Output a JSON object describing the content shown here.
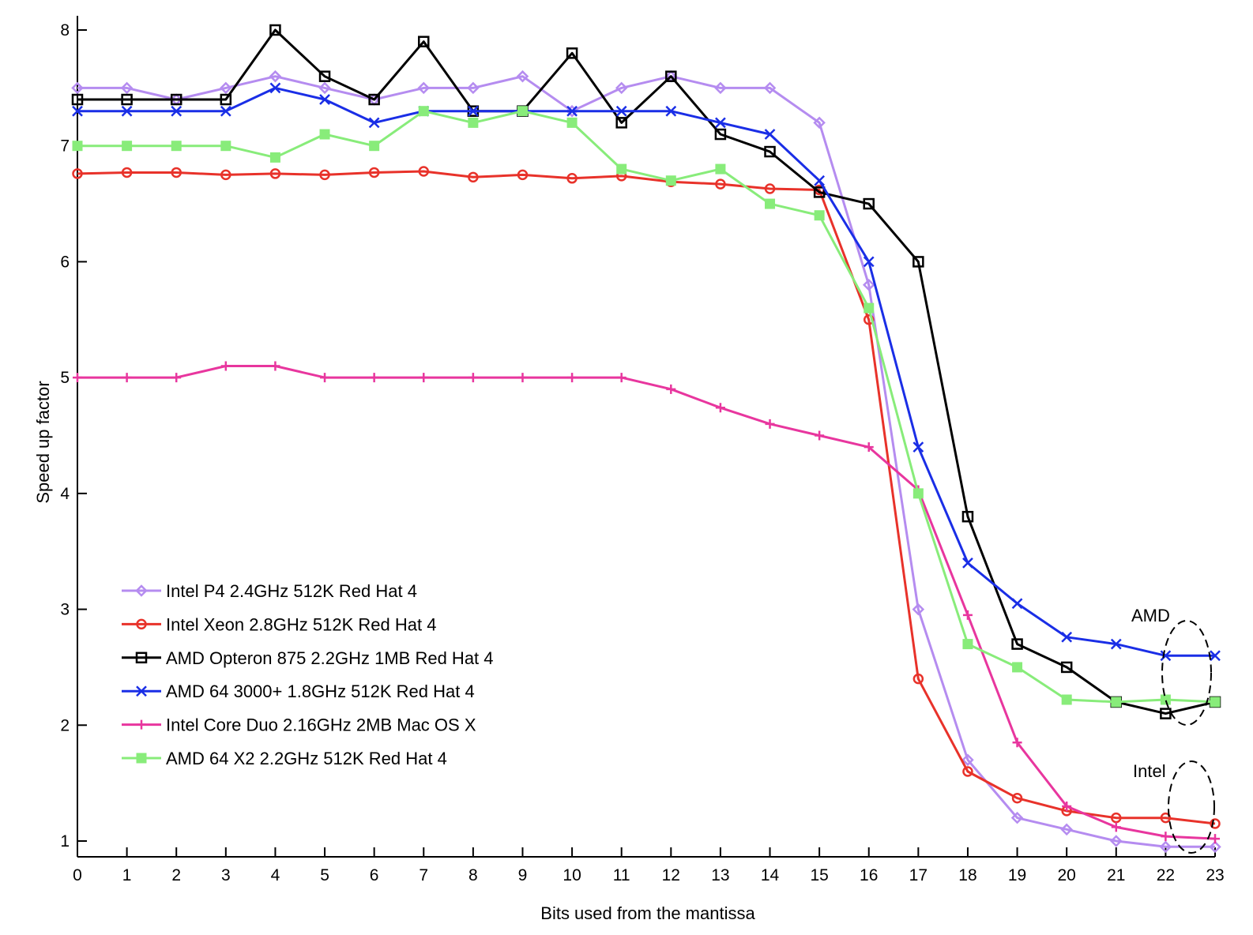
{
  "chart_data": {
    "type": "line",
    "xlabel": "Bits used from the mantissa",
    "ylabel": "Speed up factor",
    "xlim": [
      0,
      23
    ],
    "ylim": [
      0.9,
      8.05
    ],
    "x": [
      0,
      1,
      2,
      3,
      4,
      5,
      6,
      7,
      8,
      9,
      10,
      11,
      12,
      13,
      14,
      15,
      16,
      17,
      18,
      19,
      20,
      21,
      22,
      23
    ],
    "xticks": [
      "0",
      "1",
      "2",
      "3",
      "4",
      "5",
      "6",
      "7",
      "8",
      "9",
      "10",
      "11",
      "12",
      "13",
      "14",
      "15",
      "16",
      "17",
      "18",
      "19",
      "20",
      "21",
      "22",
      "23"
    ],
    "yticks": [
      1,
      2,
      3,
      4,
      5,
      6,
      7,
      8
    ],
    "ytick_labels": [
      "1",
      "2",
      "3",
      "4",
      "5",
      "6",
      "7",
      "8"
    ],
    "grid": false,
    "legend_position": "lower-left",
    "series": [
      {
        "name": "Intel P4 2.4GHz 512K Red Hat 4",
        "color": "#b58cf0",
        "marker": "diamond",
        "values": [
          7.5,
          7.5,
          7.4,
          7.5,
          7.6,
          7.5,
          7.4,
          7.5,
          7.5,
          7.6,
          7.3,
          7.5,
          7.6,
          7.5,
          7.5,
          7.2,
          5.8,
          3.0,
          1.7,
          1.2,
          1.1,
          1.0,
          0.95,
          0.95
        ]
      },
      {
        "name": "Intel Xeon 2.8GHz 512K Red Hat 4",
        "color": "#e8322a",
        "marker": "circle",
        "values": [
          6.76,
          6.77,
          6.77,
          6.75,
          6.76,
          6.75,
          6.77,
          6.78,
          6.73,
          6.75,
          6.72,
          6.74,
          6.69,
          6.67,
          6.63,
          6.62,
          5.5,
          2.4,
          1.6,
          1.37,
          1.26,
          1.2,
          1.2,
          1.15
        ]
      },
      {
        "name": "AMD Opteron 875 2.2GHz 1MB Red Hat 4",
        "color": "#000000",
        "marker": "square",
        "values": [
          7.4,
          7.4,
          7.4,
          7.4,
          8.0,
          7.6,
          7.4,
          7.9,
          7.3,
          7.3,
          7.8,
          7.2,
          7.6,
          7.1,
          6.95,
          6.6,
          6.5,
          6.0,
          3.8,
          2.7,
          2.5,
          2.2,
          2.1,
          2.2
        ]
      },
      {
        "name": "AMD 64 3000+ 1.8GHz 512K Red Hat  4",
        "color": "#1a2ee6",
        "marker": "x",
        "values": [
          7.3,
          7.3,
          7.3,
          7.3,
          7.5,
          7.4,
          7.2,
          7.3,
          7.3,
          7.3,
          7.3,
          7.3,
          7.3,
          7.2,
          7.1,
          6.7,
          6.0,
          4.4,
          3.4,
          3.05,
          2.76,
          2.7,
          2.6,
          2.6
        ]
      },
      {
        "name": "Intel Core Duo 2.16GHz 2MB Mac OS X",
        "color": "#e8369e",
        "marker": "plus",
        "values": [
          5.0,
          5.0,
          5.0,
          5.1,
          5.1,
          5.0,
          5.0,
          5.0,
          5.0,
          5.0,
          5.0,
          5.0,
          4.9,
          4.74,
          4.6,
          4.5,
          4.4,
          4.03,
          2.95,
          1.85,
          1.3,
          1.12,
          1.04,
          1.02
        ]
      },
      {
        "name": "AMD 64 X2 2.2GHz 512K Red Hat 4",
        "color": "#88ec7a",
        "marker": "filled-square",
        "values": [
          7.0,
          7.0,
          7.0,
          7.0,
          6.9,
          7.1,
          7.0,
          7.3,
          7.2,
          7.3,
          7.2,
          6.8,
          6.7,
          6.8,
          6.5,
          6.4,
          5.6,
          4.0,
          2.7,
          2.5,
          2.22,
          2.2,
          2.22,
          2.2
        ]
      }
    ],
    "annotations": [
      "AMD",
      "Intel"
    ]
  }
}
